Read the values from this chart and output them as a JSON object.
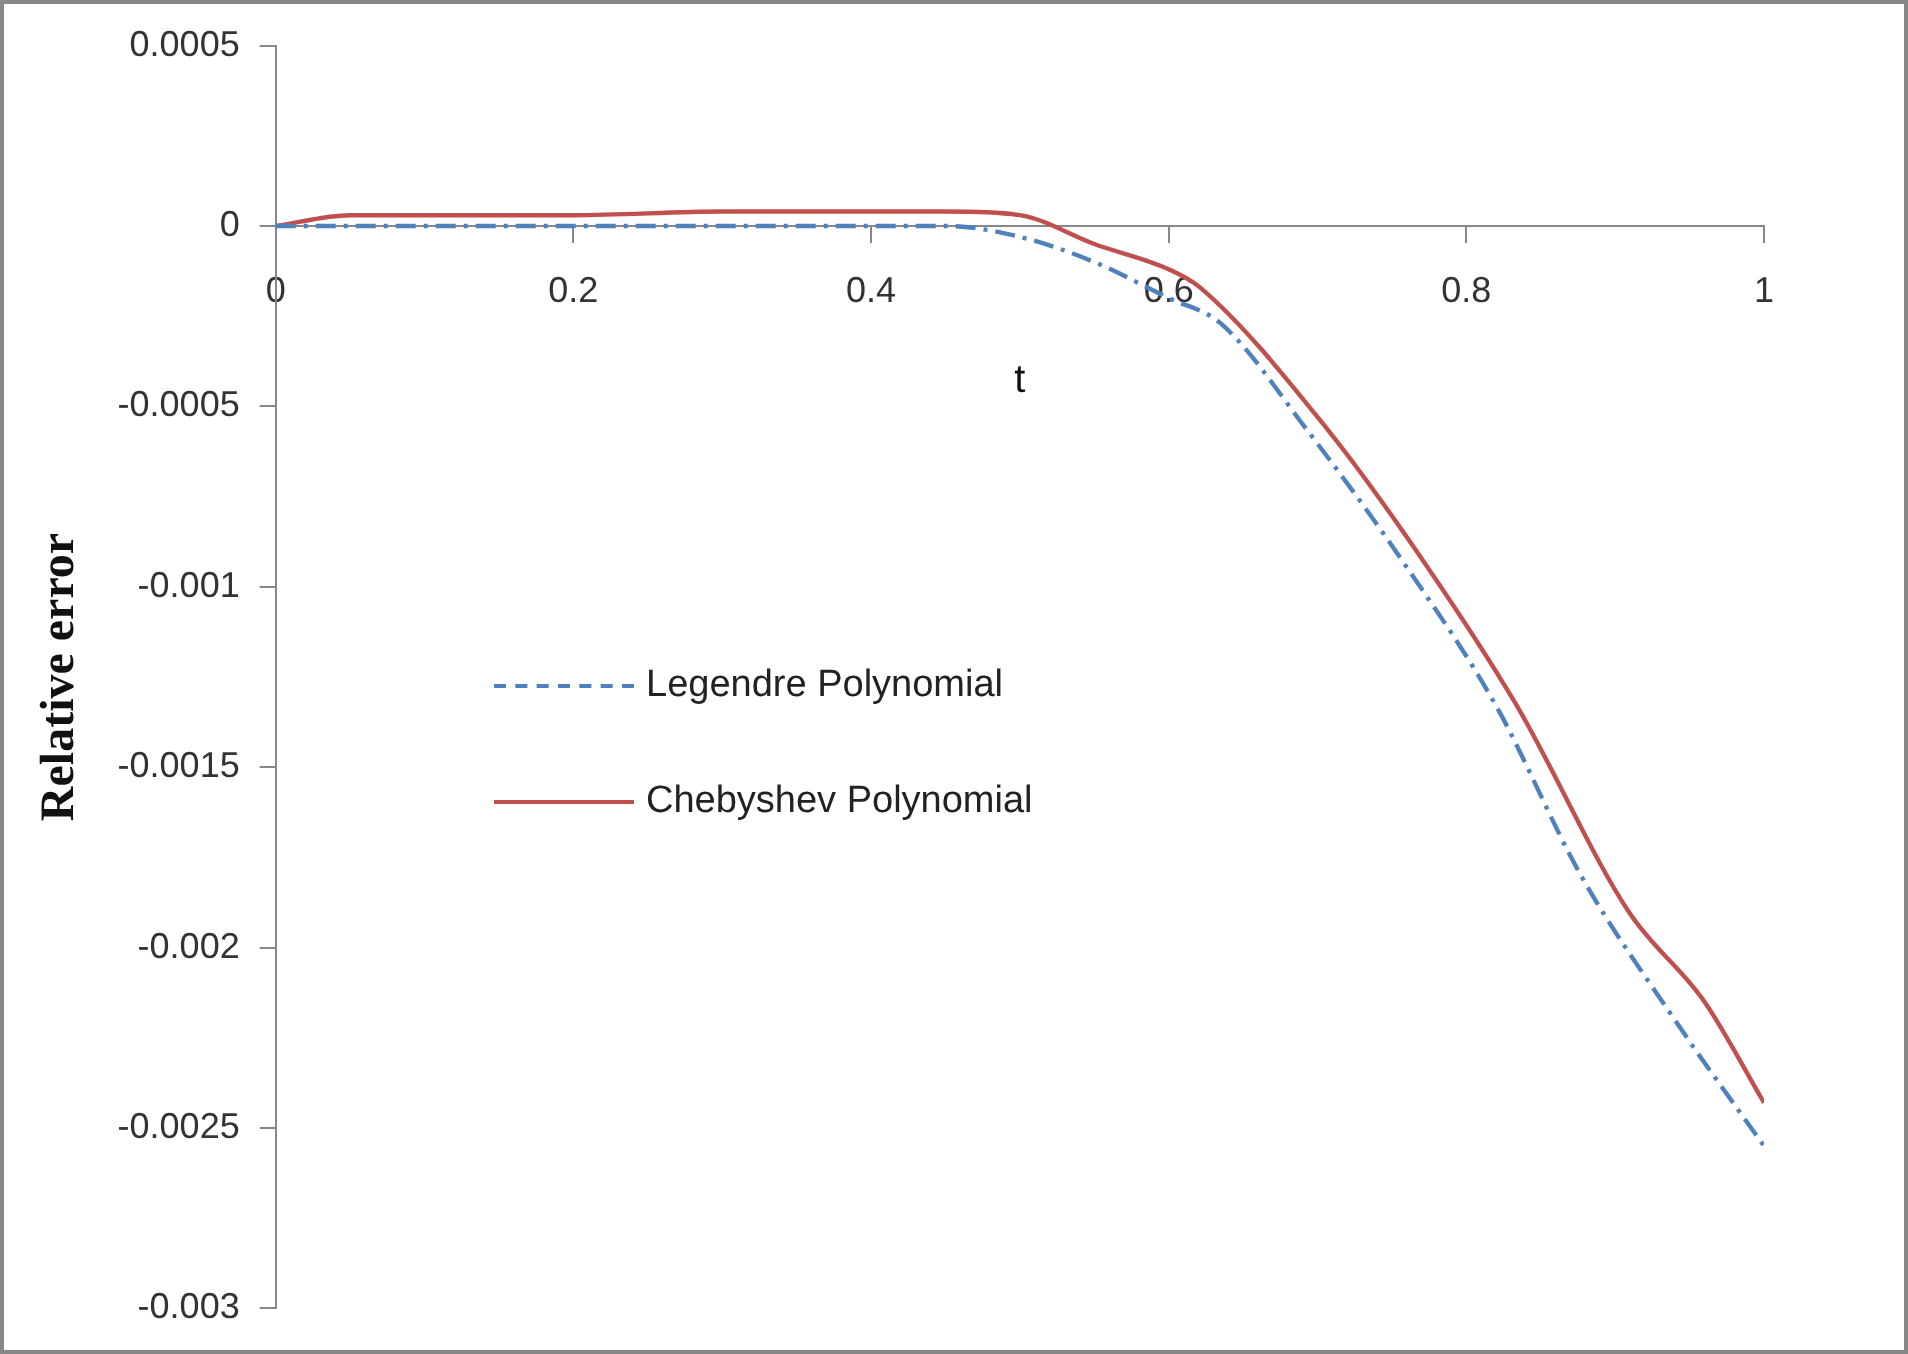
{
  "chart_data": {
    "type": "line",
    "xlabel": "t",
    "ylabel": "Relative error",
    "xlim": [
      0,
      1
    ],
    "xticks": [
      0,
      0.2,
      0.4,
      0.6,
      0.8,
      1
    ],
    "ylim": [
      -0.003,
      0.0005
    ],
    "yticks": [
      0.0005,
      0,
      -0.0005,
      -0.001,
      -0.0015,
      -0.002,
      -0.0025,
      -0.003
    ],
    "grid": false,
    "legend": "left",
    "marker": "none",
    "series": [
      {
        "name": "Legendre Polynomial",
        "color": "#4f81bd",
        "line_style": "dashed",
        "x": [
          0,
          0.05,
          0.1,
          0.2,
          0.3,
          0.4,
          0.45,
          0.5,
          0.55,
          0.6,
          0.635,
          0.692,
          0.759,
          0.82,
          0.877,
          0.94,
          1
        ],
        "values": [
          0,
          0,
          0,
          0,
          0,
          0,
          0,
          -3e-05,
          -0.0001,
          -0.0002,
          -0.00027,
          -0.00056,
          -0.00094,
          -0.00133,
          -0.0018,
          -0.0022,
          -0.00255
        ]
      },
      {
        "name": "Chebyshev Polynomial",
        "color": "#c0504d",
        "line_style": "solid",
        "x": [
          0,
          0.05,
          0.1,
          0.2,
          0.3,
          0.4,
          0.45,
          0.5,
          0.55,
          0.6,
          0.621,
          0.706,
          0.773,
          0.834,
          0.909,
          0.96,
          1
        ],
        "values": [
          0,
          3e-05,
          3e-05,
          3e-05,
          4e-05,
          4e-05,
          4e-05,
          3e-05,
          -5e-05,
          -0.00012,
          -0.00017,
          -0.00056,
          -0.00094,
          -0.00133,
          -0.0019,
          -0.00215,
          -0.00243
        ]
      }
    ]
  }
}
